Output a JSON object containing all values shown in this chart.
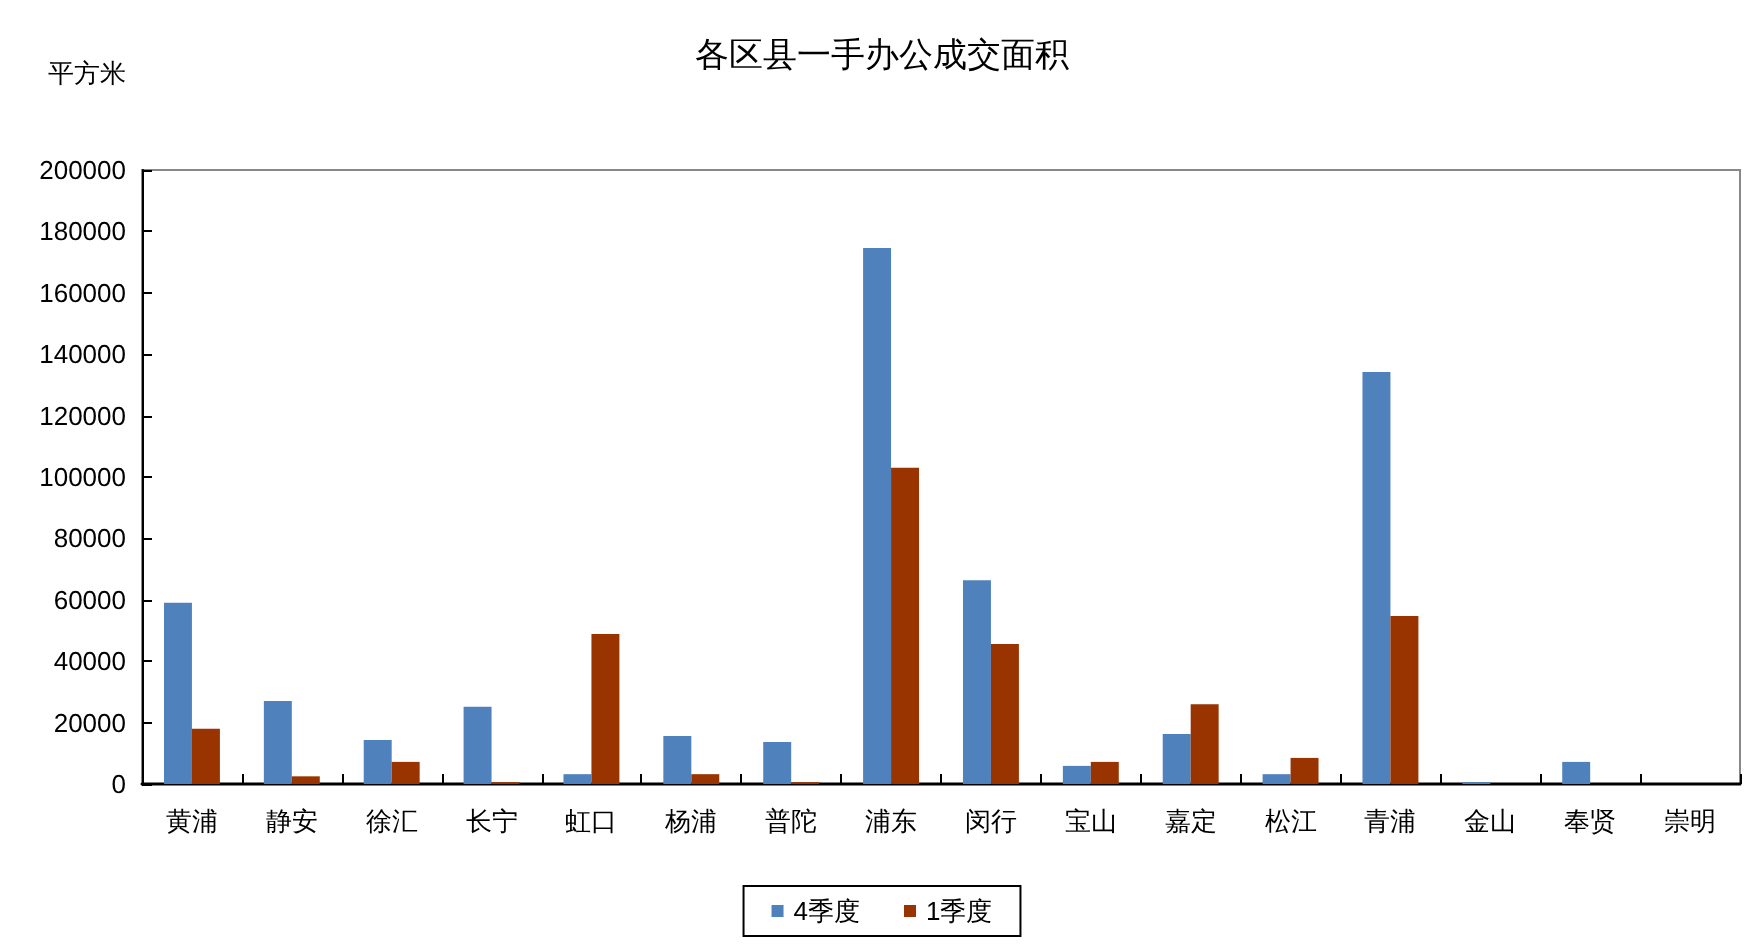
{
  "chart_data": {
    "type": "bar",
    "title": "各区县一手办公成交面积",
    "ylabel": "平方米",
    "categories": [
      "黄浦",
      "静安",
      "徐汇",
      "长宁",
      "虹口",
      "杨浦",
      "普陀",
      "浦东",
      "闵行",
      "宝山",
      "嘉定",
      "松江",
      "青浦",
      "金山",
      "奉贤",
      "崇明"
    ],
    "series": [
      {
        "name": "4季度",
        "color": "#4f81bd",
        "values": [
          59000,
          27000,
          14300,
          25200,
          3200,
          15600,
          13700,
          174600,
          66400,
          5900,
          16300,
          3200,
          134200,
          600,
          7200,
          0
        ]
      },
      {
        "name": "1季度",
        "color": "#993300",
        "values": [
          18000,
          2500,
          7200,
          600,
          48900,
          3200,
          600,
          103000,
          45600,
          7200,
          26000,
          8500,
          54700,
          0,
          0,
          0
        ]
      }
    ],
    "ylim": [
      0,
      200000
    ],
    "yticks": [
      0,
      20000,
      40000,
      60000,
      80000,
      100000,
      120000,
      140000,
      160000,
      180000,
      200000
    ],
    "grid": false,
    "legend": "bottom"
  }
}
